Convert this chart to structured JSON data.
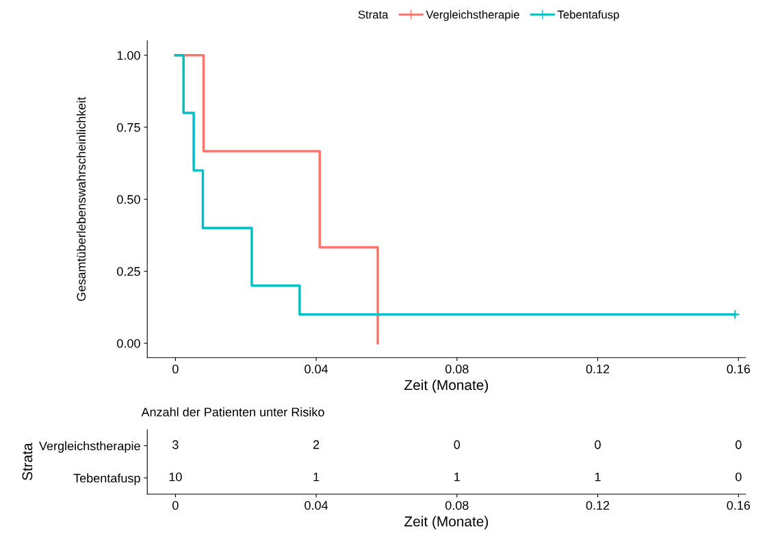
{
  "chart_data": [
    {
      "type": "step",
      "xlabel": "Zeit (Monate)",
      "ylabel": "Gesamtüberlebenswahrscheinlichkeit",
      "legend_title": "Strata",
      "legend": "top",
      "series": [
        {
          "name": "Vergleichstherapie",
          "color": "#f8766d",
          "x": [
            0,
            0.008,
            0.041,
            0.0575,
            0.0575
          ],
          "values": [
            1.0,
            0.667,
            0.333,
            0.0,
            0.0
          ]
        },
        {
          "name": "Tebentafusp",
          "color": "#00bfc4",
          "x": [
            0,
            0.0023,
            0.0052,
            0.0078,
            0.0217,
            0.0353,
            0.159
          ],
          "values": [
            1.0,
            0.8,
            0.6,
            0.4,
            0.2,
            0.1,
            0.1
          ]
        },
        {
          "type": "scatter",
          "color": "#00bfc4",
          "marker": "cross",
          "x": [
            0.159
          ],
          "values": [
            0.1
          ]
        }
      ],
      "xlim": [
        -0.008,
        0.162
      ],
      "xticks": [
        {
          "value": 0,
          "label": "0"
        },
        0.04,
        0.08,
        0.12,
        0.16
      ],
      "ylim": [
        -0.05,
        1.05
      ],
      "yticks": [
        {
          "value": 0,
          "label": "0.00"
        },
        {
          "value": 0.25,
          "label": "0.25"
        },
        {
          "value": 0.5,
          "label": "0.50"
        },
        {
          "value": 0.75,
          "label": "0.75"
        },
        {
          "value": 1,
          "label": "1.00"
        }
      ],
      "grid": false
    },
    {
      "type": "heatmap",
      "title": "Anzahl der Patienten unter Risiko",
      "xlabel": "Zeit (Monate)",
      "ylabel": "Strata",
      "y_categories": [
        "Vergleichstherapie",
        "Tebentafusp"
      ],
      "categories": [
        "0",
        "0.04",
        "0.08",
        "0.12",
        "0.16"
      ],
      "cells": [
        [
          3,
          2,
          0,
          0,
          0
        ],
        [
          10,
          1,
          1,
          1,
          0
        ]
      ],
      "data_labels": true
    }
  ]
}
